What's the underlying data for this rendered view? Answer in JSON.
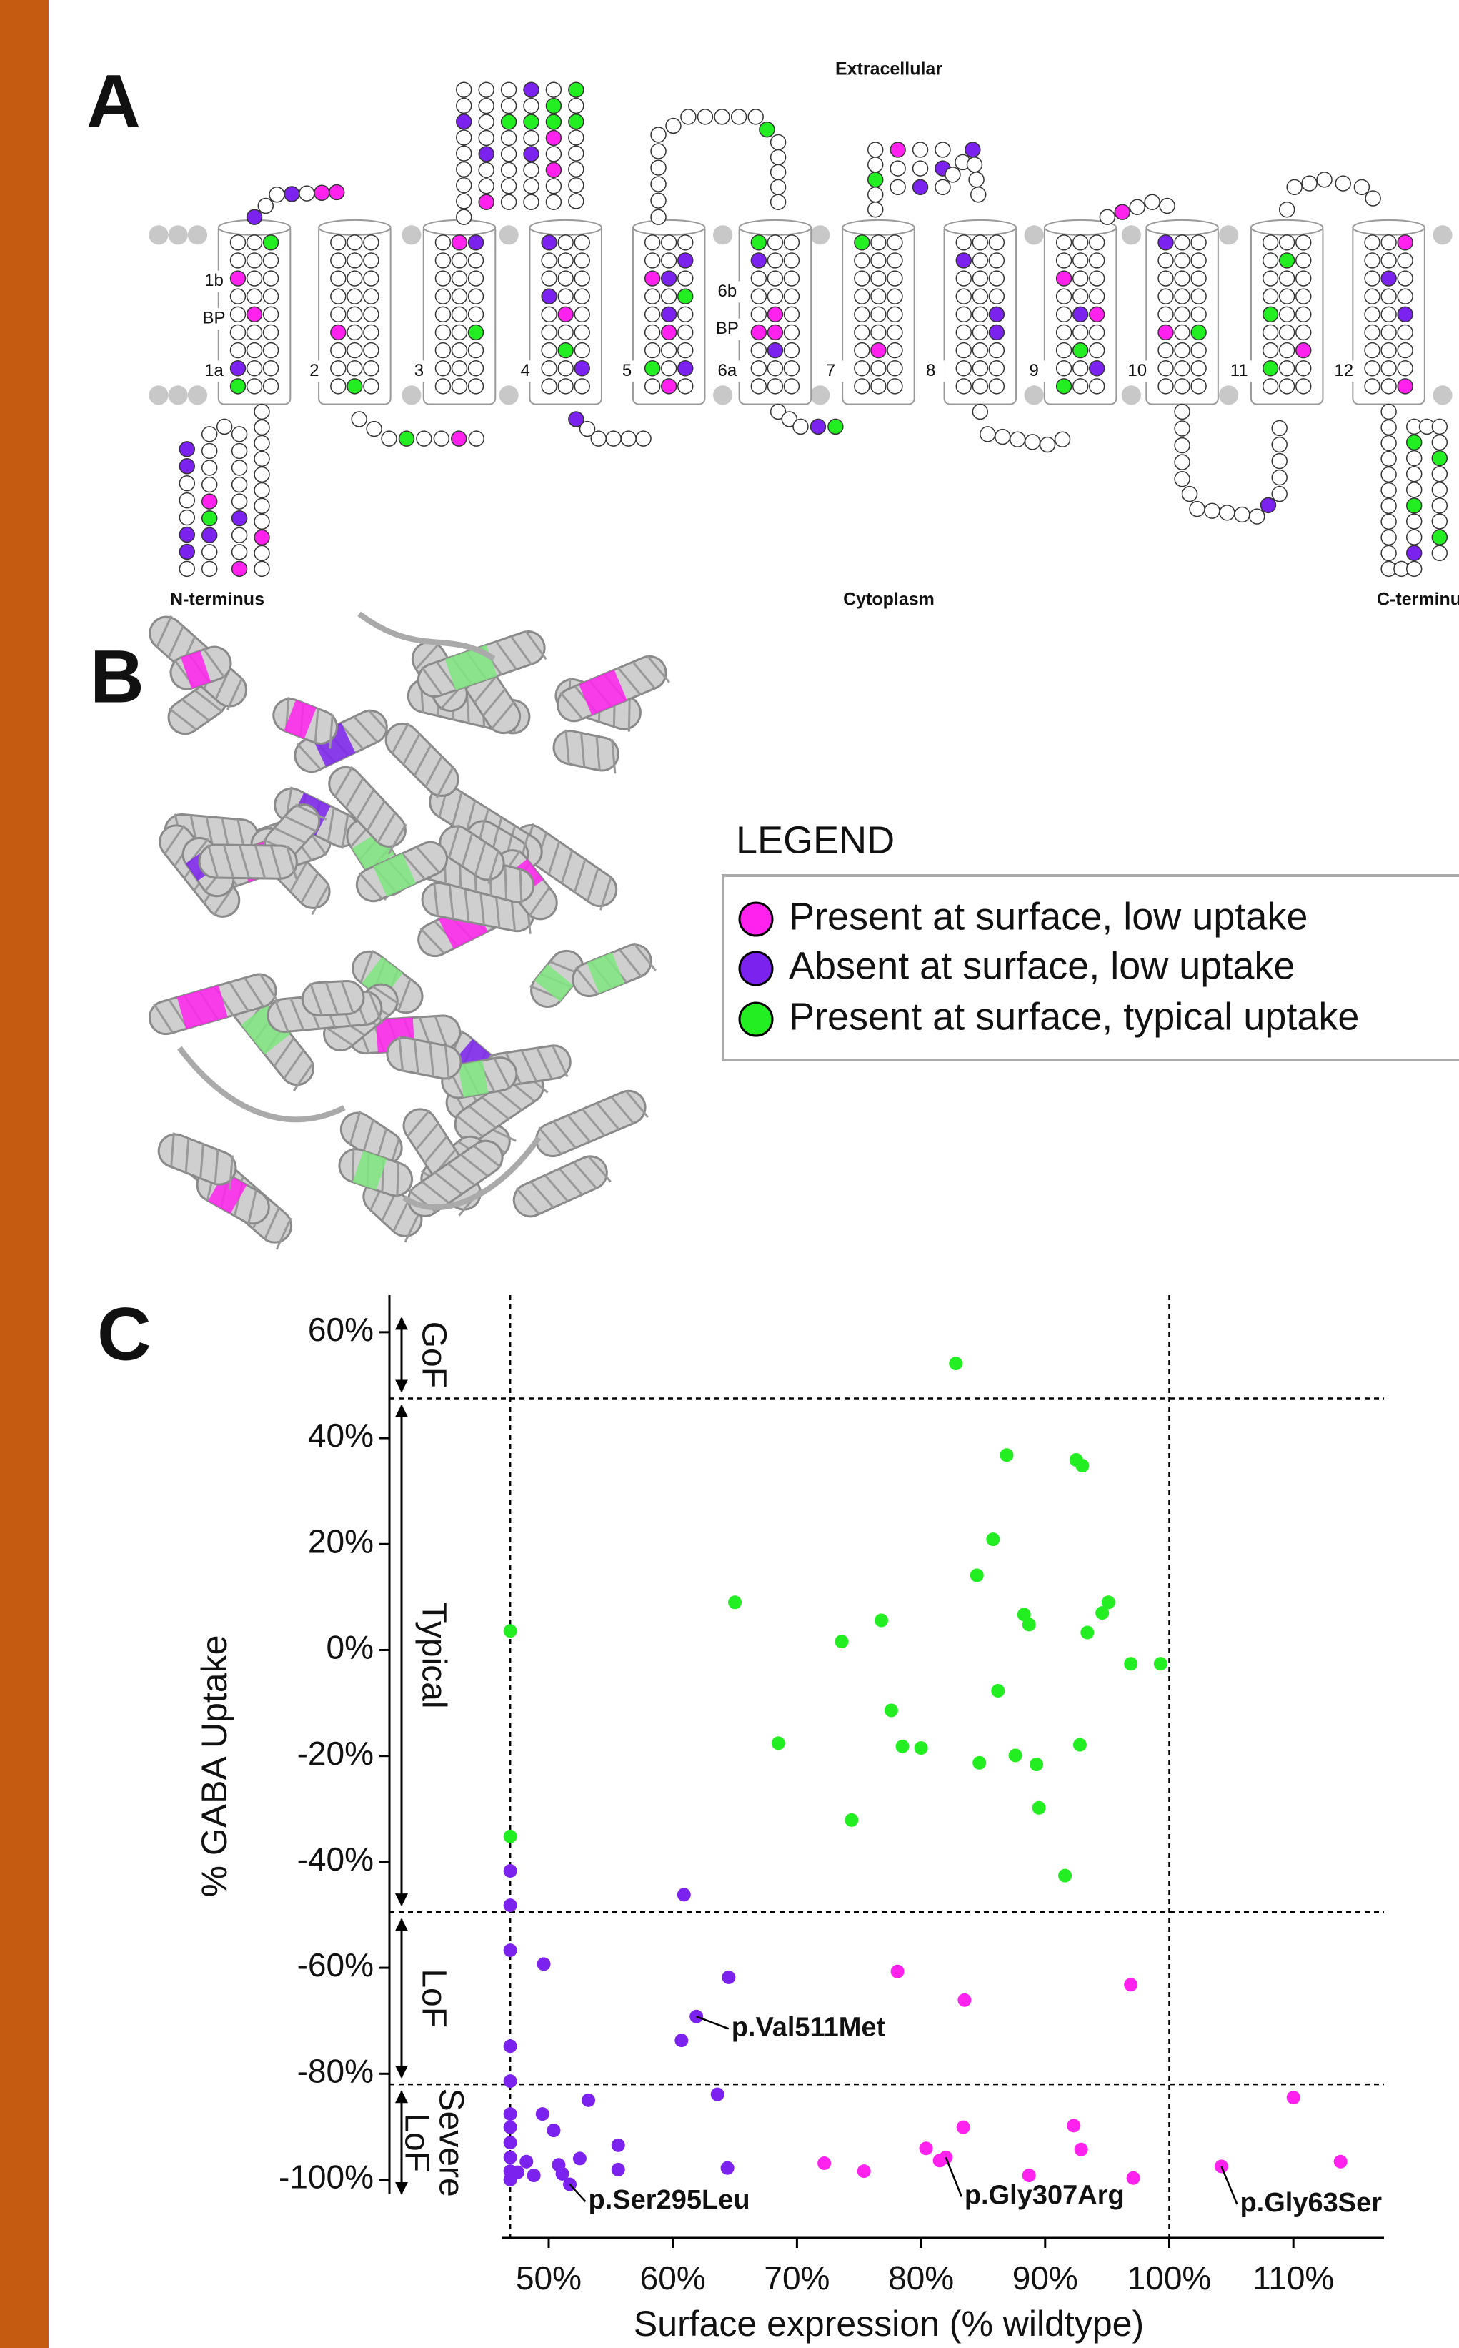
{
  "panel_a": {
    "label": "A",
    "extracellular": "Extracellular",
    "cytoplasm": "Cytoplasm",
    "n_terminus": "N-terminus",
    "c_terminus": "C-terminu",
    "helix_labels": [
      "1b",
      "BP",
      "1a",
      "2",
      "3",
      "4",
      "5",
      "6b",
      "BP",
      "6a",
      "7",
      "8",
      "9",
      "10",
      "11",
      "12"
    ]
  },
  "panel_b": {
    "label": "B"
  },
  "panel_c": {
    "label": "C"
  },
  "chart_data": {
    "type": "scatter",
    "x_label": "Surface expression (% wildtype)",
    "y_label": "% GABA Uptake",
    "xlim": [
      46.2,
      117.3
    ],
    "ylim": [
      -111,
      67
    ],
    "xticks": [
      {
        "value": 50,
        "label": "50%"
      },
      {
        "value": 60,
        "label": "60%"
      },
      {
        "value": 70,
        "label": "70%"
      },
      {
        "value": 80,
        "label": "80%"
      },
      {
        "value": 90,
        "label": "90%"
      },
      {
        "value": 100,
        "label": "100%"
      },
      {
        "value": 110,
        "label": "110%"
      }
    ],
    "yticks": [
      {
        "value": -100,
        "label": "-100%"
      },
      {
        "value": -80,
        "label": "-80%"
      },
      {
        "value": -60,
        "label": "-60%"
      },
      {
        "value": -40,
        "label": "-40%"
      },
      {
        "value": -20,
        "label": "-20%"
      },
      {
        "value": 0,
        "label": "0%"
      },
      {
        "value": 20,
        "label": "20%"
      },
      {
        "value": 40,
        "label": "40%"
      },
      {
        "value": 60,
        "label": "60%"
      }
    ],
    "vlines": [
      46.9,
      100
    ],
    "hlines": [
      47.5,
      -49.5,
      -82
    ],
    "regions": [
      {
        "label_lines": [
          "GoF"
        ],
        "range": [
          47.5,
          64
        ]
      },
      {
        "label_lines": [
          "Typical"
        ],
        "range": [
          -49.5,
          47.5
        ]
      },
      {
        "label_lines": [
          "LoF"
        ],
        "range": [
          -82,
          -49.5
        ]
      },
      {
        "label_lines": [
          "Severe",
          "LoF"
        ],
        "range": [
          -104,
          -82
        ]
      }
    ],
    "legend_title": "LEGEND",
    "series": [
      {
        "name": "Present at surface, low uptake",
        "color": "#ff22ee",
        "x": [
          78.1,
          83.5,
          96.9,
          110.0,
          83.4,
          92.3,
          80.4,
          92.9,
          81.5,
          82.0,
          72.2,
          75.4,
          88.7,
          97.1,
          104.2,
          113.8
        ],
        "values": [
          -60.7,
          -66.1,
          -63.2,
          -84.5,
          -90.1,
          -89.8,
          -94.1,
          -94.3,
          -96.4,
          -95.8,
          -96.9,
          -98.4,
          -99.2,
          -99.7,
          -97.5,
          -96.6
        ]
      },
      {
        "name": "Absent at surface, low uptake",
        "color": "#7b22ee",
        "x": [
          46.9,
          46.9,
          60.9,
          46.9,
          49.6,
          64.5,
          61.9,
          60.7,
          46.9,
          46.9,
          63.6,
          53.2,
          49.5,
          46.9,
          50.4,
          46.9,
          46.9,
          46.9,
          46.9,
          46.9,
          55.6,
          52.5,
          48.2,
          50.8,
          55.6,
          64.4,
          47.5,
          48.8,
          51.1,
          51.7
        ],
        "values": [
          -41.7,
          -48.2,
          -46.2,
          -56.7,
          -59.3,
          -61.8,
          -69.2,
          -73.7,
          -74.8,
          -81.4,
          -83.9,
          -85.0,
          -87.6,
          -87.6,
          -90.7,
          -90.1,
          -93.0,
          -95.8,
          -98.4,
          -100.0,
          -93.5,
          -96.0,
          -96.6,
          -97.2,
          -98.1,
          -97.8,
          -98.6,
          -99.2,
          -98.9,
          -100.9
        ]
      },
      {
        "name": "Present at surface, typical uptake",
        "color": "#22ee22",
        "x": [
          46.9,
          46.9,
          82.8,
          86.9,
          92.5,
          93.0,
          85.8,
          65.0,
          76.8,
          84.5,
          73.6,
          95.1,
          94.6,
          88.3,
          88.7,
          93.4,
          96.9,
          99.3,
          86.2,
          77.6,
          68.5,
          78.5,
          80.0,
          92.8,
          87.6,
          84.7,
          89.3,
          74.4,
          89.5,
          91.6
        ],
        "values": [
          3.6,
          -35.2,
          54.1,
          36.8,
          35.9,
          34.8,
          20.9,
          9.0,
          5.6,
          14.1,
          1.6,
          9.0,
          7.0,
          6.7,
          4.8,
          3.3,
          -2.6,
          -2.6,
          -7.7,
          -11.4,
          -17.6,
          -18.2,
          -18.5,
          -17.9,
          -19.9,
          -21.3,
          -21.6,
          -32.1,
          -29.8,
          -42.6
        ]
      }
    ],
    "annotations": [
      {
        "text": "p.Val511Met",
        "x": 61.9,
        "y": -69.2
      },
      {
        "text": "p.Ser295Leu",
        "x": 51.7,
        "y": -100.9
      },
      {
        "text": "p.Gly307Arg",
        "x": 82.0,
        "y": -95.8
      },
      {
        "text": "p.Gly63Ser",
        "x": 104.2,
        "y": -97.5
      }
    ]
  }
}
